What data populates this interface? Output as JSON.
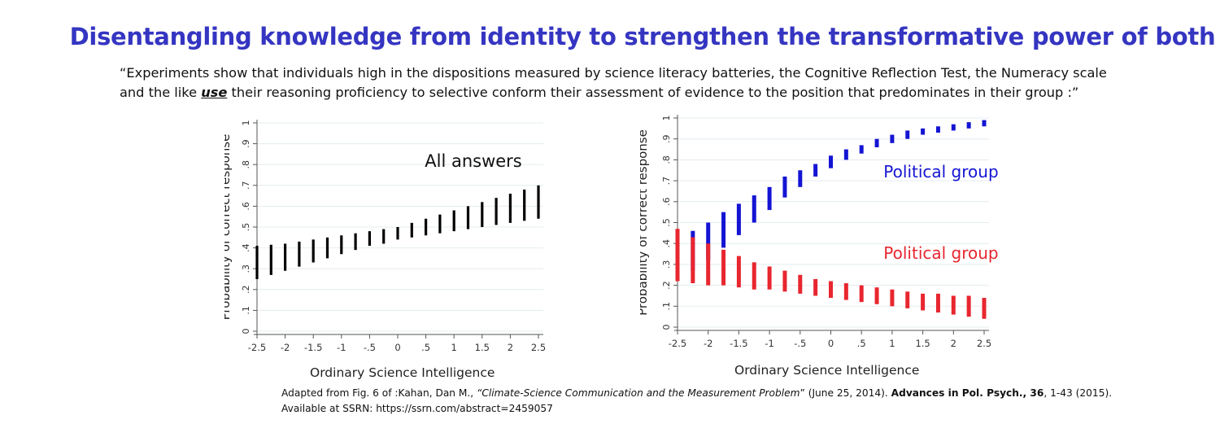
{
  "slide": {
    "title": "Disentangling knowledge from identity to strengthen the transformative power of both",
    "quote_line1": "“Experiments show that individuals high in the dispositions measured by science literacy batteries, the Cognitive Reflection Test, the Numeracy scale",
    "quote_line2_pre": "and the like ",
    "quote_line2_emph": "use",
    "quote_line2_post": " their reasoning proficiency to selective conform their assessment of evidence to the position that predominates in their group :”",
    "citation_pre": "Adapted from Fig. 6 of :Kahan, Dan M., ",
    "citation_title": "“Climate-Science Communication and the Measurement Problem",
    "citation_mid1": "” (June 25, 2014). ",
    "citation_journal": "Advances in Pol. Psych., 36",
    "citation_post": ", 1-43 (2015).",
    "citation_line2": "Available at SSRN: https://ssrn.com/abstract=2459057"
  },
  "chart_data": [
    {
      "type": "range-bar",
      "annotation": "All answers",
      "xlabel": "Ordinary Science Intelligence",
      "ylabel": "Probability of correct response",
      "xlim": [
        -2.5,
        2.5
      ],
      "ylim": [
        0,
        1
      ],
      "x_ticks": [
        "-2.5",
        "-2",
        "-1.5",
        "-1",
        "-.5",
        "0",
        ".5",
        "1",
        "1.5",
        "2",
        "2.5"
      ],
      "y_ticks": [
        "0",
        ".1",
        ".2",
        ".3",
        ".4",
        ".5",
        ".6",
        ".7",
        ".8",
        ".9",
        "1"
      ],
      "grid": true,
      "colors": {
        "series": "#000000",
        "grid": "#e3ecef",
        "axis": "#555555"
      },
      "series": [
        {
          "x": [
            -2.5,
            -2.25,
            -2,
            -1.75,
            -1.5,
            -1.25,
            -1,
            -0.75,
            -0.5,
            -0.25,
            0,
            0.25,
            0.5,
            0.75,
            1,
            1.25,
            1.5,
            1.75,
            2,
            2.25,
            2.5
          ],
          "low": [
            0.25,
            0.27,
            0.29,
            0.31,
            0.33,
            0.35,
            0.37,
            0.39,
            0.41,
            0.42,
            0.44,
            0.45,
            0.46,
            0.47,
            0.48,
            0.49,
            0.5,
            0.51,
            0.52,
            0.53,
            0.54
          ],
          "high": [
            0.41,
            0.415,
            0.42,
            0.43,
            0.44,
            0.45,
            0.46,
            0.47,
            0.48,
            0.49,
            0.5,
            0.52,
            0.54,
            0.56,
            0.58,
            0.6,
            0.62,
            0.64,
            0.66,
            0.68,
            0.7
          ]
        }
      ]
    },
    {
      "type": "range-bar",
      "xlabel": "Ordinary Science Intelligence",
      "ylabel": "Probability of correct response",
      "xlim": [
        -2.5,
        2.5
      ],
      "ylim": [
        0,
        1
      ],
      "x_ticks": [
        "-2.5",
        "-2",
        "-1.5",
        "-1",
        "-.5",
        "0",
        ".5",
        "1",
        "1.5",
        "2",
        "2.5"
      ],
      "y_ticks": [
        "0",
        ".1",
        ".2",
        ".3",
        ".4",
        ".5",
        ".6",
        ".7",
        ".8",
        ".9",
        "1"
      ],
      "grid": true,
      "colors": {
        "grid": "#e3ecef",
        "axis": "#555555"
      },
      "series": [
        {
          "name": "Political group A",
          "color": "#1414d4",
          "x": [
            -2.5,
            -2.25,
            -2,
            -1.75,
            -1.5,
            -1.25,
            -1,
            -0.75,
            -0.5,
            -0.25,
            0,
            0.25,
            0.5,
            0.75,
            1,
            1.25,
            1.5,
            1.75,
            2,
            2.25,
            2.5
          ],
          "low": [
            0.22,
            0.27,
            0.32,
            0.38,
            0.44,
            0.5,
            0.56,
            0.62,
            0.67,
            0.72,
            0.76,
            0.8,
            0.83,
            0.86,
            0.88,
            0.9,
            0.92,
            0.93,
            0.94,
            0.95,
            0.96
          ],
          "high": [
            0.42,
            0.46,
            0.5,
            0.55,
            0.59,
            0.63,
            0.67,
            0.72,
            0.75,
            0.78,
            0.82,
            0.85,
            0.87,
            0.9,
            0.92,
            0.94,
            0.95,
            0.96,
            0.97,
            0.98,
            0.99
          ]
        },
        {
          "name": "Political group B",
          "color": "#e8262f",
          "x": [
            -2.5,
            -2.25,
            -2,
            -1.75,
            -1.5,
            -1.25,
            -1,
            -0.75,
            -0.5,
            -0.25,
            0,
            0.25,
            0.5,
            0.75,
            1,
            1.25,
            1.5,
            1.75,
            2,
            2.25,
            2.5
          ],
          "low": [
            0.22,
            0.21,
            0.2,
            0.2,
            0.19,
            0.18,
            0.18,
            0.17,
            0.16,
            0.15,
            0.14,
            0.13,
            0.12,
            0.11,
            0.1,
            0.09,
            0.08,
            0.07,
            0.06,
            0.05,
            0.04
          ],
          "high": [
            0.47,
            0.43,
            0.4,
            0.37,
            0.34,
            0.31,
            0.29,
            0.27,
            0.25,
            0.23,
            0.22,
            0.21,
            0.2,
            0.19,
            0.18,
            0.17,
            0.16,
            0.16,
            0.15,
            0.15,
            0.14
          ]
        }
      ]
    }
  ]
}
